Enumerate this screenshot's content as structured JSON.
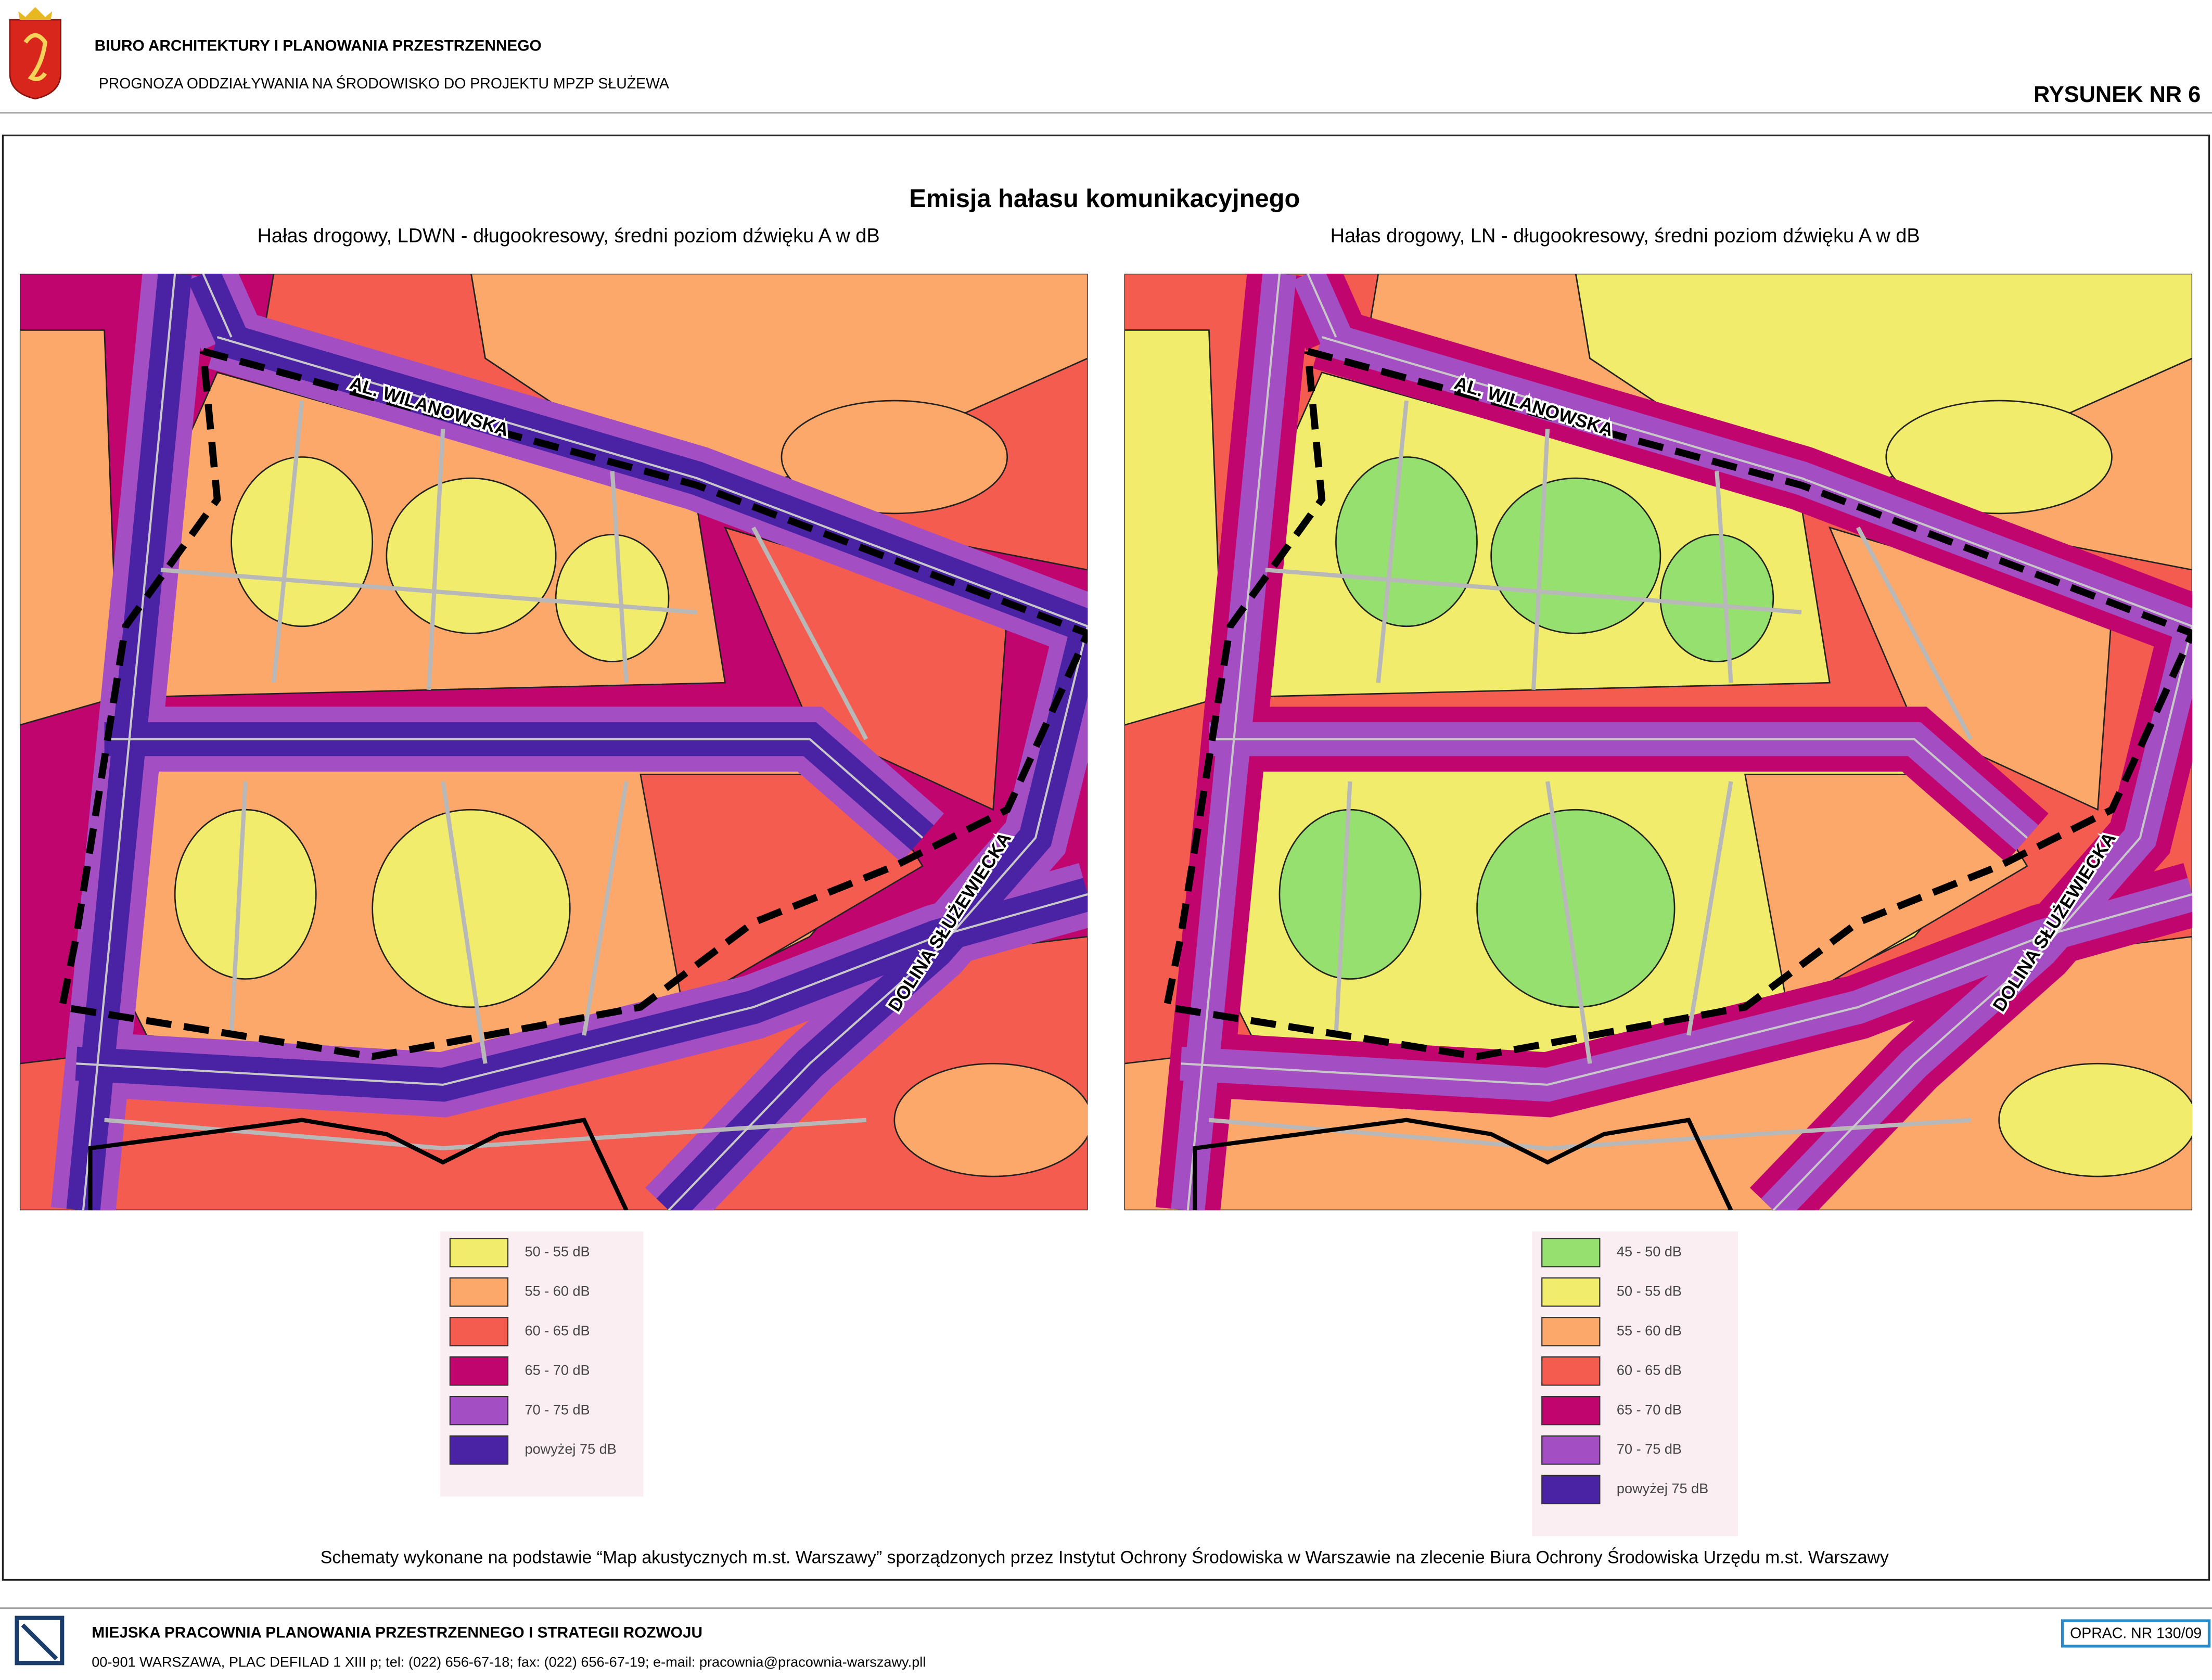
{
  "header": {
    "org": "BIURO ARCHITEKTURY I PLANOWANIA PRZESTRZENNEGO",
    "subtitle": "PROGNOZA ODDZIAŁYWANIA NA ŚRODOWISKO DO PROJEKTU MPZP  SŁUŻEWA",
    "drawing_no": "RYSUNEK NR 6"
  },
  "title": "Emisja hałasu komunikacyjnego",
  "maps": [
    {
      "subtitle": "Hałas drogowy, LDWN - długookresowy, średni poziom dźwięku A w dB",
      "street_labels": [
        "AL. WILANOWSKA",
        "DOLINA SŁUŻEWIECKA"
      ],
      "legend": [
        {
          "label": "50 - 55 dB",
          "color": "#f2ec6c"
        },
        {
          "label": "55 - 60 dB",
          "color": "#fca86a"
        },
        {
          "label": "60 - 65 dB",
          "color": "#f45c50"
        },
        {
          "label": "65 - 70 dB",
          "color": "#c0066e"
        },
        {
          "label": "70 - 75 dB",
          "color": "#a44ec4"
        },
        {
          "label": "powyżej 75 dB",
          "color": "#4a22a4"
        }
      ]
    },
    {
      "subtitle": "Hałas drogowy, LN - długookresowy, średni poziom dźwięku A w dB",
      "street_labels": [
        "AL. WILANOWSKA",
        "DOLINA SŁUŻEWIECKA"
      ],
      "legend": [
        {
          "label": "45 - 50 dB",
          "color": "#96e070"
        },
        {
          "label": "50 - 55 dB",
          "color": "#f2ec6c"
        },
        {
          "label": "55 - 60 dB",
          "color": "#fca86a"
        },
        {
          "label": "60 - 65 dB",
          "color": "#f45c50"
        },
        {
          "label": "65 - 70 dB",
          "color": "#c0066e"
        },
        {
          "label": "70 - 75 dB",
          "color": "#a44ec4"
        },
        {
          "label": "powyżej 75 dB",
          "color": "#4a22a4"
        }
      ]
    }
  ],
  "source_note": "Schematy wykonane na podstawie “Map akustycznych m.st. Warszawy” sporządzonych przez Instytut Ochrony Środowiska w Warszawie na zlecenie Biura Ochrony Środowiska Urzędu m.st. Warszawy",
  "footer": {
    "org": "MIEJSKA PRACOWNIA PLANOWANIA PRZESTRZENNEGO I STRATEGII ROZWOJU",
    "address": "00-901 WARSZAWA, PLAC DEFILAD 1 XIII p; tel: (022) 656-67-18; fax: (022) 656-67-19; e-mail: pracownia@pracownia-warszawy.pll",
    "ref": "OPRAC. NR 130/09"
  }
}
